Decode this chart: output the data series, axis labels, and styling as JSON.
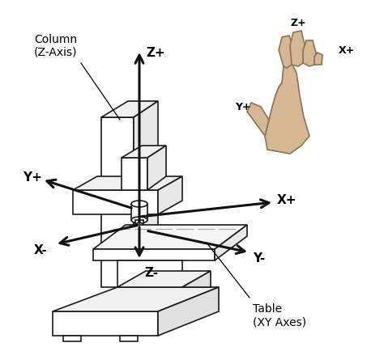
{
  "bg_color": "#ffffff",
  "line_color": "#1a1a1a",
  "arrow_color": "#111111",
  "hand_color": "#d4b896",
  "hand_outline": "#8B7355",
  "labels": {
    "column": "Column\n(Z-Axis)",
    "table": "Table\n(XY Axes)",
    "z_plus": "Z+",
    "z_minus": "Z-",
    "x_plus": "X+",
    "x_minus": "X-",
    "y_plus": "Y+",
    "y_minus": "Y-",
    "hand_y": "Y+",
    "hand_z": "Z+",
    "hand_x": "X+"
  },
  "font_size_axis": 11,
  "font_size_label": 10,
  "font_weight": "bold"
}
